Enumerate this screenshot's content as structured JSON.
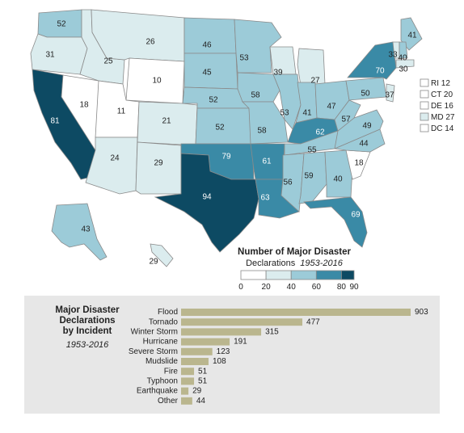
{
  "colors": {
    "bin_0_20": "#ffffff",
    "bin_20_40": "#dbecee",
    "bin_40_60": "#9ccbd8",
    "bin_60_80": "#3a8aa6",
    "bin_80_90": "#0d4a63",
    "bar": "#bab68e",
    "panel_bg": "#e7e7e7"
  },
  "chart_data": [
    {
      "type": "choropleth",
      "legend": {
        "title": "Number of Major Disaster",
        "subtitle_prefix": "Declarations",
        "subtitle_years": "1953-2016",
        "ticks": [
          "0",
          "20",
          "40",
          "60",
          "80",
          "90"
        ]
      },
      "states": [
        {
          "code": "WA",
          "value": 52
        },
        {
          "code": "OR",
          "value": 31
        },
        {
          "code": "CA",
          "value": 81
        },
        {
          "code": "NV",
          "value": 18
        },
        {
          "code": "ID",
          "value": 25
        },
        {
          "code": "MT",
          "value": 26
        },
        {
          "code": "WY",
          "value": 10
        },
        {
          "code": "UT",
          "value": 11
        },
        {
          "code": "AZ",
          "value": 24
        },
        {
          "code": "CO",
          "value": 21
        },
        {
          "code": "NM",
          "value": 29
        },
        {
          "code": "ND",
          "value": 46
        },
        {
          "code": "SD",
          "value": 45
        },
        {
          "code": "NE",
          "value": 52
        },
        {
          "code": "KS",
          "value": 52
        },
        {
          "code": "OK",
          "value": 79
        },
        {
          "code": "TX",
          "value": 94
        },
        {
          "code": "MN",
          "value": 53
        },
        {
          "code": "IA",
          "value": 58
        },
        {
          "code": "MO",
          "value": 58
        },
        {
          "code": "AR",
          "value": 61
        },
        {
          "code": "LA",
          "value": 63
        },
        {
          "code": "WI",
          "value": 39
        },
        {
          "code": "IL",
          "value": 53
        },
        {
          "code": "MI",
          "value": 27
        },
        {
          "code": "IN",
          "value": 41
        },
        {
          "code": "OH",
          "value": 47
        },
        {
          "code": "KY",
          "value": 62
        },
        {
          "code": "TN",
          "value": 55
        },
        {
          "code": "MS",
          "value": 56
        },
        {
          "code": "AL",
          "value": 59
        },
        {
          "code": "GA",
          "value": 40
        },
        {
          "code": "FL",
          "value": 69
        },
        {
          "code": "SC",
          "value": 18
        },
        {
          "code": "NC",
          "value": 44
        },
        {
          "code": "VA",
          "value": 49
        },
        {
          "code": "WV",
          "value": 57
        },
        {
          "code": "PA",
          "value": 50
        },
        {
          "code": "NY",
          "value": 70
        },
        {
          "code": "NJ",
          "value": 37
        },
        {
          "code": "ME",
          "value": 41
        },
        {
          "code": "VT",
          "value": 33
        },
        {
          "code": "NH",
          "value": 40
        },
        {
          "code": "MA",
          "value": 30
        },
        {
          "code": "AK",
          "value": 43
        },
        {
          "code": "HI",
          "value": 29
        },
        {
          "code": "RI",
          "value": 12
        },
        {
          "code": "CT",
          "value": 20
        },
        {
          "code": "DE",
          "value": 16
        },
        {
          "code": "MD",
          "value": 27
        },
        {
          "code": "DC",
          "value": 14
        }
      ],
      "small_state_labels": [
        "RI 12",
        "CT 20",
        "DE 16",
        "MD 27",
        "DC 14"
      ]
    },
    {
      "type": "bar",
      "orientation": "horizontal",
      "title": "Major Disaster Declarations by Incident",
      "subtitle": "1953-2016",
      "categories": [
        "Flood",
        "Tornado",
        "Winter Storm",
        "Hurricane",
        "Severe Storm",
        "Mudslide",
        "Fire",
        "Typhoon",
        "Earthquake",
        "Other"
      ],
      "values": [
        903,
        477,
        315,
        191,
        123,
        108,
        51,
        51,
        29,
        44
      ],
      "xlim": [
        0,
        903
      ]
    }
  ],
  "panel": {
    "title_lines": [
      "Major Disaster",
      "Declarations",
      "by Incident"
    ],
    "subtitle": "1953-2016"
  }
}
